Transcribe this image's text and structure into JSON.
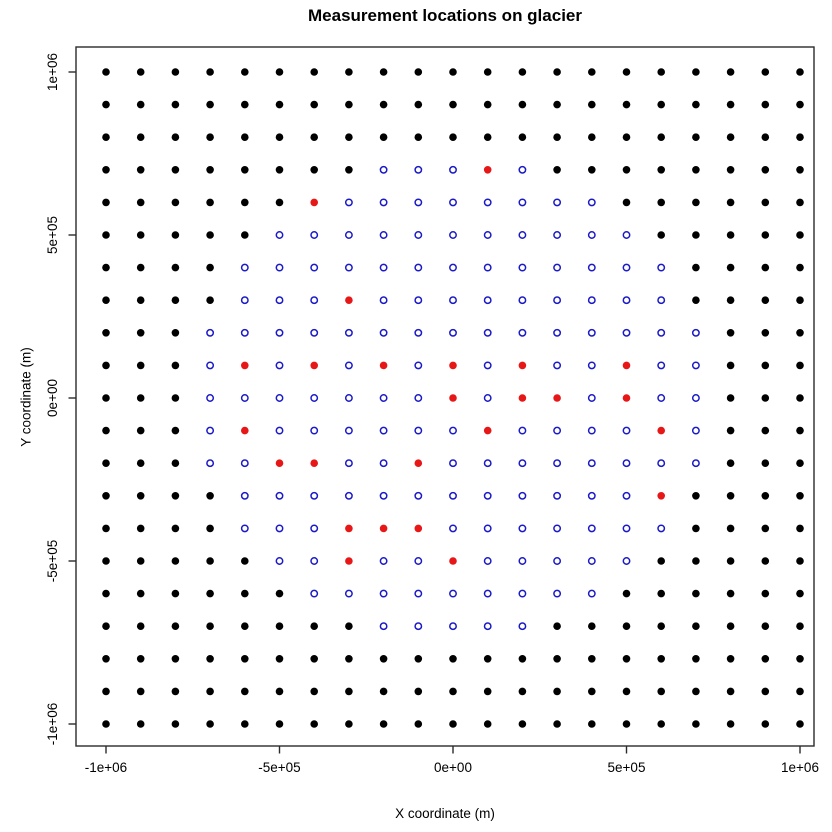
{
  "chart_data": {
    "type": "scatter",
    "title": "Measurement locations on glacier",
    "xlabel": "X coordinate (m)",
    "ylabel": "Y coordinate (m)",
    "xlim": [
      -1080000,
      1080000
    ],
    "ylim": [
      -1080000,
      1080000
    ],
    "grid_on": false,
    "legend_position": "none",
    "plot_bg": "#ffffff",
    "border_color": "#2b2b2b",
    "x_ticks": [
      {
        "value": -1000000,
        "label": "-1e+06"
      },
      {
        "value": -500000,
        "label": "-5e+05"
      },
      {
        "value": 0,
        "label": "0e+00"
      },
      {
        "value": 500000,
        "label": "5e+05"
      },
      {
        "value": 1000000,
        "label": "1e+06"
      }
    ],
    "y_ticks": [
      {
        "value": 1000000,
        "label": "1e+06"
      },
      {
        "value": 500000,
        "label": "5e+05"
      },
      {
        "value": 0,
        "label": "0e+00"
      },
      {
        "value": -500000,
        "label": "-5e+05"
      },
      {
        "value": -1000000,
        "label": "-1e+06"
      }
    ],
    "grid_layout": {
      "x_min": -1000000,
      "x_max": 1000000,
      "y_min": -1000000,
      "y_max": 1000000,
      "step": 100000,
      "n_cols": 21,
      "n_rows": 21,
      "total_points": 441
    },
    "unit_scale": 100000,
    "series": [
      {
        "name": "black filled grid dots",
        "marker": "filled-circle",
        "color": "#000000",
        "count": 264,
        "derived": "all grid points of the 21x21 lattice not listed in the other two series"
      },
      {
        "name": "blue open circles",
        "marker": "open-circle",
        "color": "#1A1AC8",
        "count": 152,
        "points": [
          [
            -2,
            7
          ],
          [
            -1,
            7
          ],
          [
            0,
            7
          ],
          [
            2,
            7
          ],
          [
            -3,
            6
          ],
          [
            -2,
            6
          ],
          [
            -1,
            6
          ],
          [
            0,
            6
          ],
          [
            1,
            6
          ],
          [
            2,
            6
          ],
          [
            3,
            6
          ],
          [
            4,
            6
          ],
          [
            -5,
            5
          ],
          [
            -4,
            5
          ],
          [
            -3,
            5
          ],
          [
            -2,
            5
          ],
          [
            -1,
            5
          ],
          [
            0,
            5
          ],
          [
            1,
            5
          ],
          [
            2,
            5
          ],
          [
            3,
            5
          ],
          [
            4,
            5
          ],
          [
            5,
            5
          ],
          [
            -6,
            4
          ],
          [
            -5,
            4
          ],
          [
            -4,
            4
          ],
          [
            -3,
            4
          ],
          [
            -2,
            4
          ],
          [
            -1,
            4
          ],
          [
            0,
            4
          ],
          [
            1,
            4
          ],
          [
            2,
            4
          ],
          [
            3,
            4
          ],
          [
            4,
            4
          ],
          [
            5,
            4
          ],
          [
            6,
            4
          ],
          [
            -6,
            3
          ],
          [
            -5,
            3
          ],
          [
            -4,
            3
          ],
          [
            -2,
            3
          ],
          [
            -1,
            3
          ],
          [
            0,
            3
          ],
          [
            1,
            3
          ],
          [
            2,
            3
          ],
          [
            3,
            3
          ],
          [
            4,
            3
          ],
          [
            5,
            3
          ],
          [
            6,
            3
          ],
          [
            -7,
            2
          ],
          [
            -6,
            2
          ],
          [
            -5,
            2
          ],
          [
            -4,
            2
          ],
          [
            -3,
            2
          ],
          [
            -2,
            2
          ],
          [
            -1,
            2
          ],
          [
            0,
            2
          ],
          [
            1,
            2
          ],
          [
            2,
            2
          ],
          [
            3,
            2
          ],
          [
            4,
            2
          ],
          [
            5,
            2
          ],
          [
            6,
            2
          ],
          [
            7,
            2
          ],
          [
            -7,
            1
          ],
          [
            -5,
            1
          ],
          [
            -3,
            1
          ],
          [
            -1,
            1
          ],
          [
            1,
            1
          ],
          [
            3,
            1
          ],
          [
            4,
            1
          ],
          [
            6,
            1
          ],
          [
            7,
            1
          ],
          [
            -7,
            0
          ],
          [
            -6,
            0
          ],
          [
            -5,
            0
          ],
          [
            -4,
            0
          ],
          [
            -3,
            0
          ],
          [
            -2,
            0
          ],
          [
            -1,
            0
          ],
          [
            1,
            0
          ],
          [
            4,
            0
          ],
          [
            6,
            0
          ],
          [
            7,
            0
          ],
          [
            -7,
            -1
          ],
          [
            -5,
            -1
          ],
          [
            -4,
            -1
          ],
          [
            -3,
            -1
          ],
          [
            -2,
            -1
          ],
          [
            -1,
            -1
          ],
          [
            0,
            -1
          ],
          [
            2,
            -1
          ],
          [
            3,
            -1
          ],
          [
            4,
            -1
          ],
          [
            5,
            -1
          ],
          [
            7,
            -1
          ],
          [
            -7,
            -2
          ],
          [
            -6,
            -2
          ],
          [
            -3,
            -2
          ],
          [
            -2,
            -2
          ],
          [
            0,
            -2
          ],
          [
            1,
            -2
          ],
          [
            2,
            -2
          ],
          [
            3,
            -2
          ],
          [
            4,
            -2
          ],
          [
            5,
            -2
          ],
          [
            6,
            -2
          ],
          [
            7,
            -2
          ],
          [
            -6,
            -3
          ],
          [
            -5,
            -3
          ],
          [
            -4,
            -3
          ],
          [
            -3,
            -3
          ],
          [
            -2,
            -3
          ],
          [
            -1,
            -3
          ],
          [
            0,
            -3
          ],
          [
            1,
            -3
          ],
          [
            2,
            -3
          ],
          [
            3,
            -3
          ],
          [
            4,
            -3
          ],
          [
            5,
            -3
          ],
          [
            -6,
            -4
          ],
          [
            -5,
            -4
          ],
          [
            -4,
            -4
          ],
          [
            0,
            -4
          ],
          [
            1,
            -4
          ],
          [
            2,
            -4
          ],
          [
            3,
            -4
          ],
          [
            4,
            -4
          ],
          [
            5,
            -4
          ],
          [
            6,
            -4
          ],
          [
            -5,
            -5
          ],
          [
            -4,
            -5
          ],
          [
            -2,
            -5
          ],
          [
            -1,
            -5
          ],
          [
            1,
            -5
          ],
          [
            2,
            -5
          ],
          [
            3,
            -5
          ],
          [
            4,
            -5
          ],
          [
            5,
            -5
          ],
          [
            -4,
            -6
          ],
          [
            -3,
            -6
          ],
          [
            -2,
            -6
          ],
          [
            -1,
            -6
          ],
          [
            0,
            -6
          ],
          [
            1,
            -6
          ],
          [
            2,
            -6
          ],
          [
            3,
            -6
          ],
          [
            4,
            -6
          ],
          [
            -2,
            -7
          ],
          [
            -1,
            -7
          ],
          [
            0,
            -7
          ],
          [
            1,
            -7
          ],
          [
            2,
            -7
          ]
        ]
      },
      {
        "name": "red filled highlighted dots",
        "marker": "filled-circle",
        "color": "#E81717",
        "count": 25,
        "points": [
          [
            1,
            7
          ],
          [
            -4,
            6
          ],
          [
            -3,
            3
          ],
          [
            -6,
            1
          ],
          [
            -4,
            1
          ],
          [
            -2,
            1
          ],
          [
            0,
            1
          ],
          [
            2,
            1
          ],
          [
            5,
            1
          ],
          [
            0,
            0
          ],
          [
            2,
            0
          ],
          [
            3,
            0
          ],
          [
            5,
            0
          ],
          [
            -6,
            -1
          ],
          [
            1,
            -1
          ],
          [
            6,
            -1
          ],
          [
            -5,
            -2
          ],
          [
            -4,
            -2
          ],
          [
            -1,
            -2
          ],
          [
            6,
            -3
          ],
          [
            -3,
            -4
          ],
          [
            -2,
            -4
          ],
          [
            -1,
            -4
          ],
          [
            -3,
            -5
          ],
          [
            0,
            -5
          ]
        ]
      }
    ]
  }
}
